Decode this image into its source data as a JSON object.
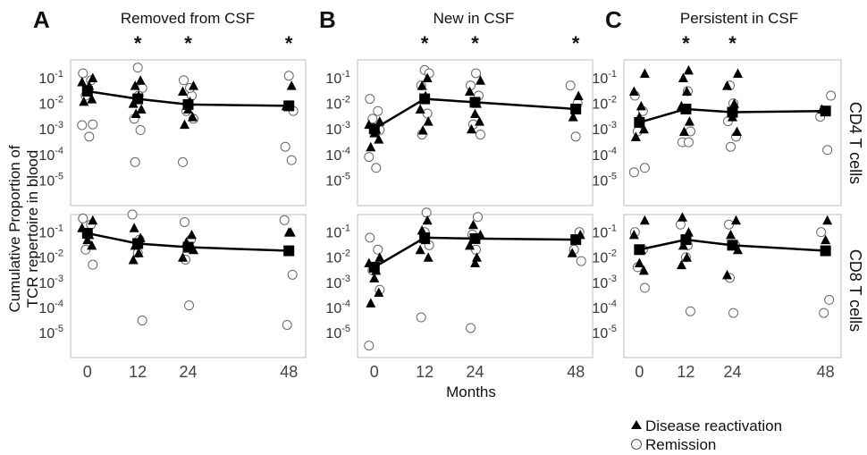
{
  "chart_data": [
    {
      "type": "scatter",
      "panel": "A",
      "title": "Removed from CSF",
      "row": "CD4 T cells",
      "x_ticks": [
        0,
        12,
        24,
        48
      ],
      "ylabel_ticks": [
        "10-1",
        "10-2",
        "10-3",
        "10-4",
        "10-5"
      ],
      "significant_x": [
        12,
        24,
        48
      ],
      "summary_line": {
        "x": [
          0,
          12,
          24,
          48
        ],
        "y": [
          0.03,
          0.015,
          0.009,
          0.008
        ]
      },
      "series": [
        {
          "name": "Disease reactivation",
          "x": [
            0,
            0,
            0,
            0,
            0,
            0,
            12,
            12,
            12,
            12,
            12,
            12,
            24,
            24,
            24,
            24,
            24,
            24,
            48,
            48
          ],
          "y": [
            0.1,
            0.07,
            0.05,
            0.03,
            0.015,
            0.012,
            0.08,
            0.05,
            0.02,
            0.01,
            0.006,
            0.004,
            0.05,
            0.03,
            0.012,
            0.006,
            0.003,
            0.0015,
            0.05,
            0.008
          ]
        },
        {
          "name": "Remission",
          "x": [
            0,
            0,
            0,
            0,
            0,
            0,
            12,
            12,
            12,
            12,
            12,
            12,
            24,
            24,
            24,
            24,
            24,
            24,
            48,
            48,
            48,
            48
          ],
          "y": [
            0.15,
            0.08,
            0.02,
            0.0015,
            0.0014,
            0.0005,
            0.25,
            0.04,
            0.0025,
            0.0009,
            5e-05,
            0.02,
            0.08,
            0.02,
            0.005,
            0.0025,
            5e-05,
            0.04,
            0.12,
            0.005,
            0.0002,
            6e-05
          ]
        }
      ]
    },
    {
      "type": "scatter",
      "panel": "A",
      "row": "CD8 T cells",
      "x_ticks": [
        0,
        12,
        24,
        48
      ],
      "ylabel_ticks": [
        "10-1",
        "10-2",
        "10-3",
        "10-4",
        "10-5"
      ],
      "summary_line": {
        "x": [
          0,
          12,
          24,
          48
        ],
        "y": [
          0.09,
          0.035,
          0.025,
          0.018
        ]
      },
      "series": [
        {
          "name": "Disease reactivation",
          "x": [
            0,
            0,
            0,
            0,
            0,
            12,
            12,
            12,
            12,
            12,
            24,
            24,
            24,
            24,
            48,
            48
          ],
          "y": [
            0.3,
            0.15,
            0.08,
            0.05,
            0.03,
            0.15,
            0.06,
            0.03,
            0.015,
            0.008,
            0.08,
            0.04,
            0.02,
            0.01,
            0.1,
            0.1
          ]
        },
        {
          "name": "Remission",
          "x": [
            0,
            0,
            0,
            0,
            12,
            12,
            12,
            12,
            24,
            24,
            24,
            24,
            48,
            48,
            48
          ],
          "y": [
            0.35,
            0.2,
            0.02,
            0.005,
            0.5,
            0.05,
            0.015,
            3e-05,
            0.25,
            0.05,
            0.008,
            0.00012,
            0.3,
            0.002,
            2e-05
          ]
        }
      ]
    },
    {
      "type": "scatter",
      "panel": "B",
      "title": "New in CSF",
      "row": "CD4 T cells",
      "x_ticks": [
        0,
        12,
        24,
        48
      ],
      "ylabel_ticks": [
        "10-1",
        "10-2",
        "10-3",
        "10-4",
        "10-5"
      ],
      "significant_x": [
        12,
        24,
        48
      ],
      "summary_line": {
        "x": [
          0,
          12,
          24,
          48
        ],
        "y": [
          0.001,
          0.015,
          0.011,
          0.006
        ]
      },
      "series": [
        {
          "name": "Disease reactivation",
          "x": [
            0,
            0,
            0,
            0,
            0,
            0,
            12,
            12,
            12,
            12,
            12,
            12,
            24,
            24,
            24,
            24,
            24,
            24,
            48,
            48
          ],
          "y": [
            0.002,
            0.0015,
            0.001,
            0.0007,
            0.0004,
            0.0002,
            0.1,
            0.05,
            0.02,
            0.006,
            0.002,
            0.0009,
            0.08,
            0.03,
            0.01,
            0.004,
            0.002,
            0.001,
            0.02,
            0.003
          ]
        },
        {
          "name": "Remission",
          "x": [
            0,
            0,
            0,
            0,
            0,
            0,
            12,
            12,
            12,
            12,
            12,
            24,
            24,
            24,
            24,
            24,
            48,
            48,
            48
          ],
          "y": [
            0.015,
            0.005,
            0.0025,
            0.0009,
            8e-05,
            3e-05,
            0.2,
            0.15,
            0.05,
            0.004,
            0.0006,
            0.15,
            0.05,
            0.02,
            0.0015,
            0.0006,
            0.05,
            0.01,
            0.0005
          ]
        }
      ]
    },
    {
      "type": "scatter",
      "panel": "B",
      "row": "CD8 T cells",
      "x_ticks": [
        0,
        12,
        24,
        48
      ],
      "ylabel_ticks": [
        "10-1",
        "10-2",
        "10-3",
        "10-4",
        "10-5"
      ],
      "summary_line": {
        "x": [
          0,
          12,
          24,
          48
        ],
        "y": [
          0.004,
          0.06,
          0.055,
          0.05
        ]
      },
      "series": [
        {
          "name": "Disease reactivation",
          "x": [
            0,
            0,
            0,
            0,
            0,
            0,
            12,
            12,
            12,
            12,
            12,
            24,
            24,
            24,
            24,
            24,
            48,
            48
          ],
          "y": [
            0.01,
            0.006,
            0.003,
            0.0015,
            0.0004,
            0.00015,
            0.3,
            0.12,
            0.05,
            0.02,
            0.01,
            0.2,
            0.08,
            0.03,
            0.01,
            0.006,
            0.08,
            0.015
          ]
        },
        {
          "name": "Remission",
          "x": [
            0,
            0,
            0,
            0,
            0,
            12,
            12,
            12,
            12,
            24,
            24,
            24,
            24,
            48,
            48,
            48
          ],
          "y": [
            0.06,
            0.02,
            0.003,
            0.0005,
            3e-06,
            0.6,
            0.1,
            0.03,
            4e-05,
            0.4,
            0.08,
            0.02,
            1.5e-05,
            0.1,
            0.02,
            0.007
          ]
        }
      ]
    },
    {
      "type": "scatter",
      "panel": "C",
      "title": "Persistent in CSF",
      "row": "CD4 T cells",
      "x_ticks": [
        0,
        12,
        24,
        48
      ],
      "ylabel_ticks": [
        "10-1",
        "10-2",
        "10-3",
        "10-4",
        "10-5"
      ],
      "significant_x": [
        12,
        24
      ],
      "summary_line": {
        "x": [
          0,
          12,
          24,
          48
        ],
        "y": [
          0.0018,
          0.006,
          0.0045,
          0.005
        ]
      },
      "series": [
        {
          "name": "Disease reactivation",
          "x": [
            0,
            0,
            0,
            0,
            0,
            0,
            12,
            12,
            12,
            12,
            12,
            12,
            24,
            24,
            24,
            24,
            24,
            48
          ],
          "y": [
            0.15,
            0.03,
            0.008,
            0.003,
            0.001,
            0.0005,
            0.2,
            0.1,
            0.03,
            0.008,
            0.002,
            0.0008,
            0.15,
            0.05,
            0.01,
            0.003,
            0.0008,
            0.006
          ]
        },
        {
          "name": "Remission",
          "x": [
            0,
            0,
            0,
            0,
            0,
            12,
            12,
            12,
            12,
            12,
            24,
            24,
            24,
            24,
            24,
            48,
            48,
            48
          ],
          "y": [
            0.02,
            0.005,
            0.0008,
            3e-05,
            2e-05,
            0.03,
            0.006,
            0.0008,
            0.0003,
            0.0003,
            0.05,
            0.01,
            0.002,
            0.0005,
            0.0002,
            0.02,
            0.003,
            0.00015
          ]
        }
      ]
    },
    {
      "type": "scatter",
      "panel": "C",
      "row": "CD8 T cells",
      "x_ticks": [
        0,
        12,
        24,
        48
      ],
      "ylabel_ticks": [
        "10-1",
        "10-2",
        "10-3",
        "10-4",
        "10-5"
      ],
      "summary_line": {
        "x": [
          0,
          12,
          24,
          48
        ],
        "y": [
          0.02,
          0.05,
          0.03,
          0.018
        ]
      },
      "series": [
        {
          "name": "Disease reactivation",
          "x": [
            0,
            0,
            0,
            0,
            0,
            12,
            12,
            12,
            12,
            12,
            24,
            24,
            24,
            24,
            48,
            48
          ],
          "y": [
            0.3,
            0.08,
            0.02,
            0.006,
            0.003,
            0.4,
            0.1,
            0.03,
            0.01,
            0.005,
            0.3,
            0.08,
            0.02,
            0.002,
            0.3,
            0.05
          ]
        },
        {
          "name": "Remission",
          "x": [
            0,
            0,
            0,
            0,
            12,
            12,
            12,
            12,
            24,
            24,
            24,
            24,
            48,
            48,
            48
          ],
          "y": [
            0.1,
            0.02,
            0.004,
            0.0006,
            0.2,
            0.03,
            0.01,
            7e-05,
            0.2,
            0.03,
            0.0015,
            6e-05,
            0.1,
            0.0002,
            6e-05
          ]
        }
      ]
    }
  ],
  "panels": [
    {
      "letter": "A",
      "title": "Removed from CSF"
    },
    {
      "letter": "B",
      "title": "New in CSF"
    },
    {
      "letter": "C",
      "title": "Persistent in CSF"
    }
  ],
  "significance_mark": "*",
  "ylabel_line1": "Cumulative Proportion of",
  "ylabel_line2": "TCR repertoire in blood",
  "xlabel": "Months",
  "row_labels": [
    "CD4 T cells",
    "CD8 T cells"
  ],
  "legend": {
    "reactivation": "Disease reactivation",
    "remission": "Remission"
  }
}
